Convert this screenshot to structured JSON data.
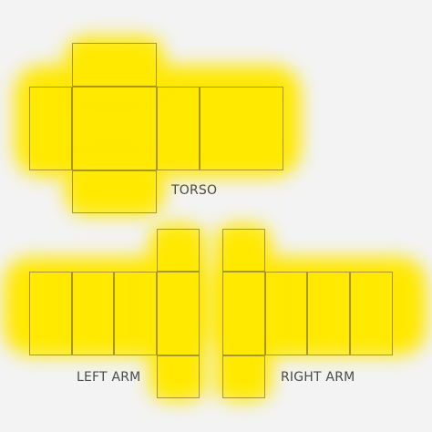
{
  "template": {
    "torso_label": "TORSO",
    "left_arm_label": "LEFT ARM",
    "right_arm_label": "RIGHT ARM"
  },
  "colors": {
    "background": "#f3f3f3",
    "fill": "#ffe800",
    "outline": "#5f503c"
  }
}
